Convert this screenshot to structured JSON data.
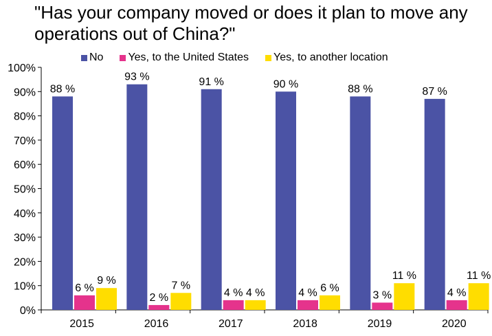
{
  "title": "\"Has your company moved or does it plan to move any operations out of China?\"",
  "chart_data": {
    "type": "bar",
    "categories": [
      "2015",
      "2016",
      "2017",
      "2018",
      "2019",
      "2020"
    ],
    "series": [
      {
        "name": "No",
        "values": [
          88,
          93,
          91,
          90,
          88,
          87
        ],
        "labels": [
          "88 %",
          "93 %",
          "91 %",
          "90 %",
          "88 %",
          "87 %"
        ],
        "color": "#4b53a5"
      },
      {
        "name": "Yes, to the United States",
        "values": [
          6,
          2,
          4,
          4,
          3,
          4
        ],
        "labels": [
          "6 %",
          "2 %",
          "4 %",
          "4 %",
          "3 %",
          "4 %"
        ],
        "color": "#e5338c"
      },
      {
        "name": "Yes, to another location",
        "values": [
          9,
          7,
          4,
          6,
          11,
          11
        ],
        "labels": [
          "9 %",
          "7 %",
          "4 %",
          "6 %",
          "11 %",
          "11 %"
        ],
        "color": "#ffdd00"
      }
    ],
    "ylim": [
      0,
      100
    ],
    "yticks": [
      "0%",
      "10%",
      "20%",
      "30%",
      "40%",
      "50%",
      "60%",
      "70%",
      "80%",
      "90%",
      "100%"
    ],
    "legend_position": "top",
    "grid": false
  }
}
